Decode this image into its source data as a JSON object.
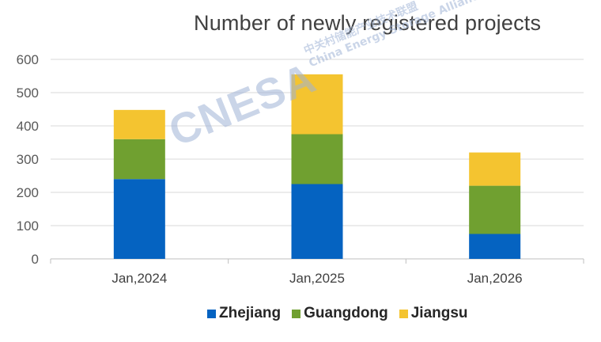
{
  "chart_data": {
    "type": "bar",
    "stacked": true,
    "title": "Number of newly registered projects",
    "xlabel": "",
    "ylabel": "",
    "categories": [
      "Jan,2024",
      "Jan,2025",
      "Jan,2026"
    ],
    "series": [
      {
        "name": "Zhejiang",
        "color": "#0563c1",
        "values": [
          240,
          225,
          75
        ]
      },
      {
        "name": "Guangdong",
        "color": "#70a030",
        "values": [
          120,
          150,
          145
        ]
      },
      {
        "name": "Jiangsu",
        "color": "#f4c430",
        "values": [
          88,
          180,
          100
        ]
      }
    ],
    "ylim": [
      0,
      600
    ],
    "yticks": [
      "0",
      "100",
      "200",
      "300",
      "400",
      "500",
      "600"
    ],
    "grid": true,
    "legend_position": "bottom"
  },
  "watermark": {
    "main": "CNESA",
    "sub_cn": "中关村储能产业技术联盟",
    "sub_en": "China Energy Storage Alliance"
  }
}
